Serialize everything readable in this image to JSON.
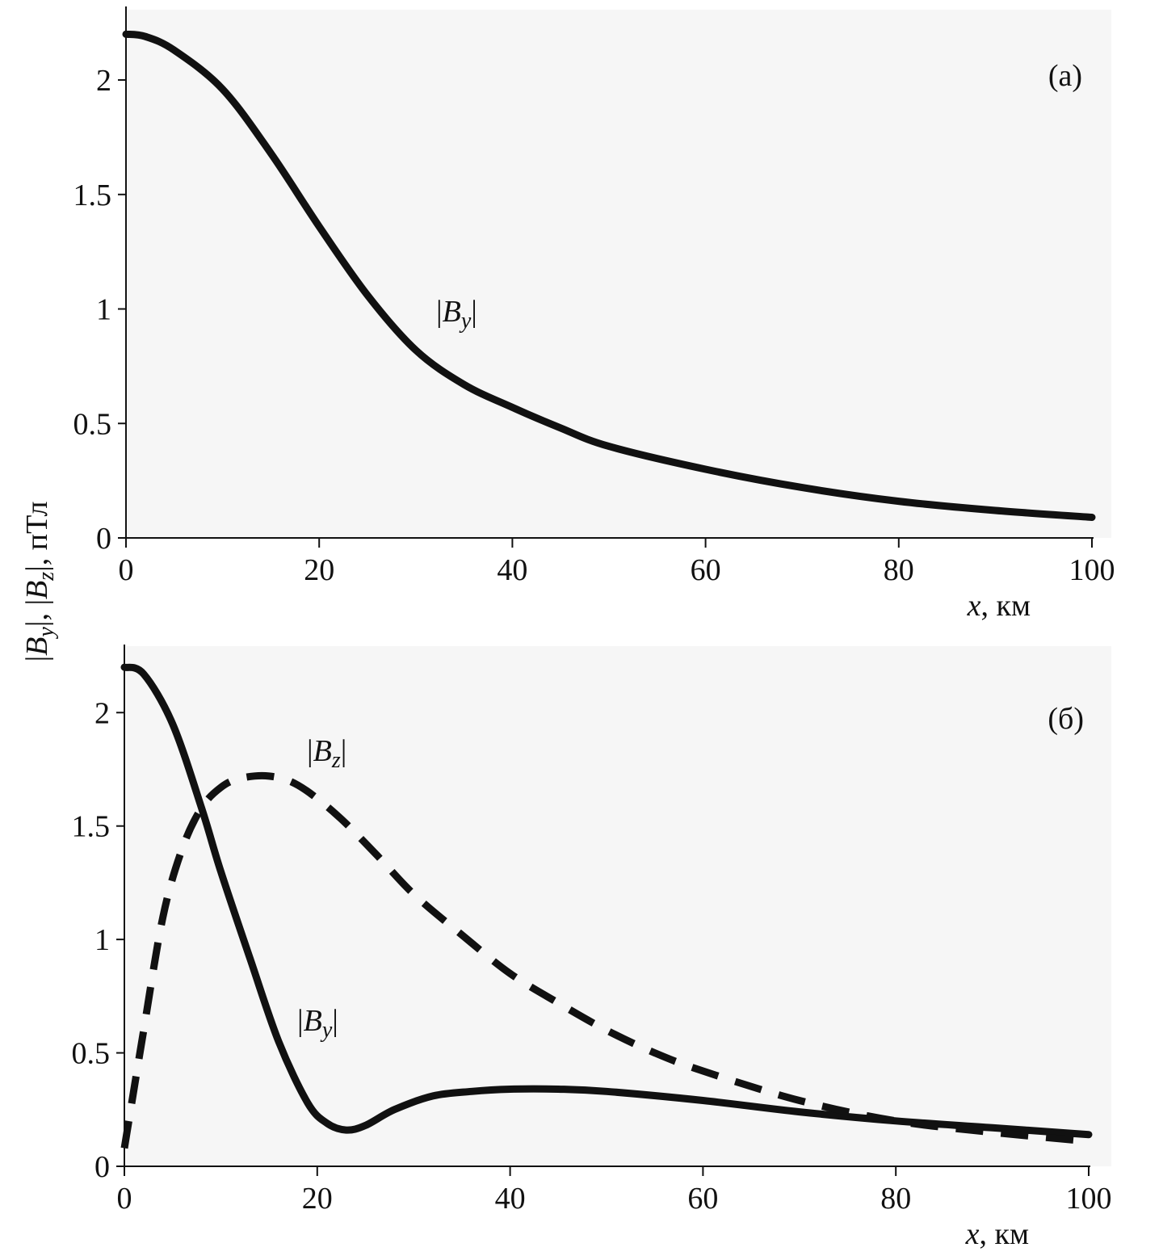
{
  "figure": {
    "ylabel_parts": [
      "|",
      "B",
      "y",
      "|, |",
      "B",
      "z",
      "|, пТл"
    ]
  },
  "chart_data": [
    {
      "type": "line",
      "panel_label": "(а)",
      "xlabel_parts": [
        "x",
        ", км"
      ],
      "xlim": [
        0,
        100
      ],
      "ylim": [
        0,
        2.3
      ],
      "xticks": [
        "0",
        "20",
        "40",
        "60",
        "80",
        "100"
      ],
      "yticks": [
        "0",
        "0.5",
        "1",
        "1.5",
        "2"
      ],
      "grid": false,
      "series": [
        {
          "label_parts": [
            "|",
            "B",
            "y",
            "|"
          ],
          "style": "solid",
          "color": "#111111",
          "x": [
            0,
            2,
            5,
            10,
            15,
            20,
            25,
            30,
            35,
            40,
            45,
            50,
            60,
            70,
            80,
            90,
            100
          ],
          "y": [
            2.2,
            2.19,
            2.13,
            1.96,
            1.68,
            1.36,
            1.06,
            0.82,
            0.67,
            0.57,
            0.48,
            0.4,
            0.3,
            0.22,
            0.16,
            0.12,
            0.09
          ]
        }
      ]
    },
    {
      "type": "line",
      "panel_label": "(б)",
      "xlabel_parts": [
        "x",
        ", км"
      ],
      "xlim": [
        0,
        100
      ],
      "ylim": [
        0,
        2.3
      ],
      "xticks": [
        "0",
        "20",
        "40",
        "60",
        "80",
        "100"
      ],
      "yticks": [
        "0",
        "0.5",
        "1",
        "1.5",
        "2"
      ],
      "grid": false,
      "series": [
        {
          "label_parts": [
            "|",
            "B",
            "y",
            "|"
          ],
          "style": "solid",
          "color": "#111111",
          "x": [
            0,
            2,
            5,
            8,
            10,
            13,
            16,
            19,
            21,
            23,
            25,
            28,
            32,
            36,
            40,
            45,
            50,
            60,
            70,
            80,
            90,
            100
          ],
          "y": [
            2.2,
            2.17,
            1.95,
            1.58,
            1.3,
            0.92,
            0.55,
            0.28,
            0.19,
            0.16,
            0.18,
            0.25,
            0.31,
            0.33,
            0.34,
            0.34,
            0.33,
            0.29,
            0.24,
            0.2,
            0.17,
            0.14
          ]
        },
        {
          "label_parts": [
            "|",
            "B",
            "z",
            "|"
          ],
          "style": "dashed",
          "color": "#111111",
          "x": [
            0,
            2,
            4,
            6,
            8,
            10,
            12,
            15,
            18,
            22,
            26,
            30,
            35,
            40,
            45,
            50,
            55,
            60,
            70,
            80,
            90,
            100
          ],
          "y": [
            0.08,
            0.6,
            1.1,
            1.4,
            1.58,
            1.67,
            1.71,
            1.72,
            1.68,
            1.55,
            1.38,
            1.2,
            1.02,
            0.85,
            0.72,
            0.6,
            0.5,
            0.42,
            0.29,
            0.2,
            0.15,
            0.11
          ]
        }
      ]
    }
  ]
}
